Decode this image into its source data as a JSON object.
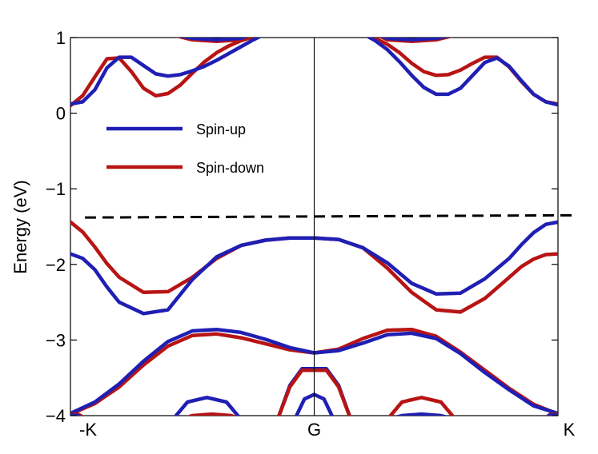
{
  "chart_data": {
    "type": "line",
    "title": "",
    "xlabel": "",
    "ylabel": "Energy (eV)",
    "xlim": [
      0,
      2
    ],
    "ylim": [
      -4,
      1
    ],
    "x_ticks": [
      {
        "value": 0,
        "label": "-K"
      },
      {
        "value": 1,
        "label": "G"
      },
      {
        "value": 2,
        "label": "K"
      }
    ],
    "y_ticks": [
      {
        "value": 1,
        "label": "1"
      },
      {
        "value": 0,
        "label": "0"
      },
      {
        "value": -1,
        "label": "−1"
      },
      {
        "value": -2,
        "label": "−2"
      },
      {
        "value": -3,
        "label": "−3"
      },
      {
        "value": -4,
        "label": "−4"
      }
    ],
    "vertical_line_x": 1,
    "fermi_line": {
      "style": "dashed",
      "color": "#000000",
      "y": [
        -1.38,
        -1.35
      ]
    },
    "legend": {
      "placement": "upper-left",
      "entries": [
        {
          "label": "Spin-up",
          "color": "#1f1fb4"
        },
        {
          "label": "Spin-down",
          "color": "#b81414"
        }
      ]
    },
    "series": [
      {
        "color": "#b81414",
        "x": [
          0,
          0.05,
          0.1,
          0.15,
          0.2,
          0.3,
          0.4,
          0.5,
          0.6,
          0.7,
          0.8,
          0.9,
          1.0,
          1.1,
          1.2,
          1.3,
          1.4,
          1.5,
          1.6,
          1.7,
          1.8,
          1.85,
          1.9,
          1.95,
          2.0
        ],
        "y": [
          -1.44,
          -1.57,
          -1.77,
          -1.99,
          -2.17,
          -2.37,
          -2.36,
          -2.17,
          -1.92,
          -1.75,
          -1.68,
          -1.65,
          -1.65,
          -1.67,
          -1.78,
          -2.05,
          -2.37,
          -2.6,
          -2.63,
          -2.45,
          -2.17,
          -2.03,
          -1.93,
          -1.87,
          -1.86
        ]
      },
      {
        "color": "#1f1fb4",
        "x": [
          0,
          0.05,
          0.1,
          0.15,
          0.2,
          0.3,
          0.4,
          0.5,
          0.6,
          0.7,
          0.8,
          0.9,
          1.0,
          1.1,
          1.2,
          1.3,
          1.4,
          1.5,
          1.6,
          1.7,
          1.8,
          1.85,
          1.9,
          1.95,
          2.0
        ],
        "y": [
          -1.86,
          -1.92,
          -2.07,
          -2.3,
          -2.5,
          -2.65,
          -2.6,
          -2.2,
          -1.9,
          -1.75,
          -1.68,
          -1.65,
          -1.65,
          -1.67,
          -1.78,
          -1.98,
          -2.25,
          -2.39,
          -2.38,
          -2.19,
          -1.92,
          -1.74,
          -1.58,
          -1.47,
          -1.44
        ]
      },
      {
        "color": "#b81414",
        "x": [
          0,
          0.05,
          0.1,
          0.15,
          0.2,
          0.25,
          0.3,
          0.35,
          0.4,
          0.45,
          0.5,
          0.55,
          0.6,
          0.65,
          0.7,
          0.75,
          0.8
        ],
        "y": [
          0.1,
          0.23,
          0.48,
          0.72,
          0.73,
          0.55,
          0.33,
          0.23,
          0.26,
          0.37,
          0.53,
          0.68,
          0.8,
          0.89,
          0.96,
          1.01,
          1.05
        ]
      },
      {
        "color": "#1f1fb4",
        "x": [
          0,
          0.05,
          0.1,
          0.15,
          0.2,
          0.25,
          0.3,
          0.35,
          0.4,
          0.45,
          0.5,
          0.55,
          0.6,
          0.65,
          0.7,
          0.75,
          0.8
        ],
        "y": [
          0.12,
          0.15,
          0.31,
          0.6,
          0.74,
          0.74,
          0.63,
          0.52,
          0.49,
          0.51,
          0.56,
          0.62,
          0.7,
          0.79,
          0.88,
          0.97,
          1.05
        ]
      },
      {
        "color": "#b81414",
        "x": [
          1.2,
          1.25,
          1.3,
          1.35,
          1.4,
          1.45,
          1.5,
          1.55,
          1.6,
          1.65,
          1.7,
          1.75,
          1.8,
          1.85,
          1.9,
          1.95,
          2.0
        ],
        "y": [
          1.05,
          0.99,
          0.91,
          0.8,
          0.66,
          0.55,
          0.5,
          0.51,
          0.57,
          0.66,
          0.74,
          0.74,
          0.61,
          0.42,
          0.25,
          0.15,
          0.12
        ]
      },
      {
        "color": "#1f1fb4",
        "x": [
          1.2,
          1.25,
          1.3,
          1.35,
          1.4,
          1.45,
          1.5,
          1.55,
          1.6,
          1.65,
          1.7,
          1.75,
          1.8,
          1.85,
          1.9,
          1.95,
          2.0
        ],
        "y": [
          1.05,
          0.96,
          0.84,
          0.68,
          0.5,
          0.34,
          0.25,
          0.25,
          0.33,
          0.5,
          0.67,
          0.73,
          0.62,
          0.43,
          0.25,
          0.15,
          0.11
        ]
      },
      {
        "color": "#b81414",
        "x": [
          0.4,
          0.5,
          0.6,
          0.7,
          0.75
        ],
        "y": [
          1.05,
          0.97,
          0.95,
          0.97,
          1.05
        ]
      },
      {
        "color": "#1f1fb4",
        "x": [
          0.4,
          0.5,
          0.6,
          0.7,
          0.75
        ],
        "y": [
          1.05,
          0.99,
          0.97,
          0.99,
          1.05
        ]
      },
      {
        "color": "#b81414",
        "x": [
          1.25,
          1.3,
          1.4,
          1.5,
          1.6
        ],
        "y": [
          1.05,
          0.97,
          0.95,
          0.97,
          1.05
        ]
      },
      {
        "color": "#1f1fb4",
        "x": [
          1.25,
          1.3,
          1.4,
          1.5,
          1.6
        ],
        "y": [
          1.05,
          0.99,
          0.97,
          0.99,
          1.05
        ]
      },
      {
        "color": "#b81414",
        "x": [
          0,
          0.1,
          0.2,
          0.3,
          0.4,
          0.5,
          0.6,
          0.7,
          0.8,
          0.9,
          1.0,
          1.1,
          1.2,
          1.3,
          1.4,
          1.5,
          1.6,
          1.7,
          1.8,
          1.9,
          2.0
        ],
        "y": [
          -3.98,
          -3.84,
          -3.62,
          -3.33,
          -3.08,
          -2.94,
          -2.92,
          -2.97,
          -3.05,
          -3.13,
          -3.17,
          -3.12,
          -2.98,
          -2.87,
          -2.86,
          -2.95,
          -3.16,
          -3.4,
          -3.64,
          -3.85,
          -3.98
        ]
      },
      {
        "color": "#1f1fb4",
        "x": [
          0,
          0.1,
          0.2,
          0.3,
          0.4,
          0.5,
          0.6,
          0.7,
          0.8,
          0.9,
          1.0,
          1.1,
          1.2,
          1.3,
          1.4,
          1.5,
          1.6,
          1.7,
          1.8,
          1.9,
          2.0
        ],
        "y": [
          -3.97,
          -3.82,
          -3.58,
          -3.28,
          -3.02,
          -2.88,
          -2.86,
          -2.9,
          -2.99,
          -3.1,
          -3.17,
          -3.14,
          -3.04,
          -2.93,
          -2.91,
          -2.98,
          -3.18,
          -3.43,
          -3.66,
          -3.87,
          -3.97
        ]
      },
      {
        "color": "#b81414",
        "x": [
          0.0,
          0.03,
          0.07
        ],
        "y": [
          -3.98,
          -3.98,
          -4.05
        ]
      },
      {
        "color": "#1f1fb4",
        "x": [
          0.0,
          0.03,
          0.06
        ],
        "y": [
          -3.99,
          -4.0,
          -4.05
        ]
      },
      {
        "color": "#1f1fb4",
        "x": [
          0.85,
          0.9,
          0.95,
          1.0,
          1.05,
          1.1,
          1.15
        ],
        "y": [
          -4.05,
          -3.6,
          -3.38,
          -3.38,
          -3.38,
          -3.6,
          -4.05
        ]
      },
      {
        "color": "#b81414",
        "x": [
          0.85,
          0.9,
          0.95,
          1.0,
          1.05,
          1.1,
          1.15
        ],
        "y": [
          -4.05,
          -3.62,
          -3.4,
          -3.4,
          -3.4,
          -3.62,
          -4.05
        ]
      },
      {
        "color": "#1f1fb4",
        "x": [
          0.92,
          0.96,
          1.0,
          1.04,
          1.08
        ],
        "y": [
          -4.05,
          -3.78,
          -3.72,
          -3.78,
          -4.05
        ]
      },
      {
        "color": "#1f1fb4",
        "x": [
          0.42,
          0.48,
          0.56,
          0.64,
          0.7
        ],
        "y": [
          -4.05,
          -3.82,
          -3.76,
          -3.82,
          -4.05
        ]
      },
      {
        "color": "#b81414",
        "x": [
          0.45,
          0.5,
          0.58,
          0.66,
          0.7
        ],
        "y": [
          -4.05,
          -4.0,
          -3.98,
          -4.0,
          -4.05
        ]
      },
      {
        "color": "#b81414",
        "x": [
          1.3,
          1.36,
          1.44,
          1.52,
          1.58
        ],
        "y": [
          -4.05,
          -3.82,
          -3.76,
          -3.82,
          -4.05
        ]
      },
      {
        "color": "#1f1fb4",
        "x": [
          1.3,
          1.36,
          1.44,
          1.52,
          1.58
        ],
        "y": [
          -4.05,
          -4.0,
          -3.98,
          -4.0,
          -4.05
        ]
      },
      {
        "color": "#b81414",
        "x": [
          1.94,
          1.97,
          2.0
        ],
        "y": [
          -4.05,
          -3.98,
          -3.98
        ]
      },
      {
        "color": "#1f1fb4",
        "x": [
          1.94,
          1.97,
          2.0
        ],
        "y": [
          -4.05,
          -3.99,
          -3.99
        ]
      }
    ]
  }
}
